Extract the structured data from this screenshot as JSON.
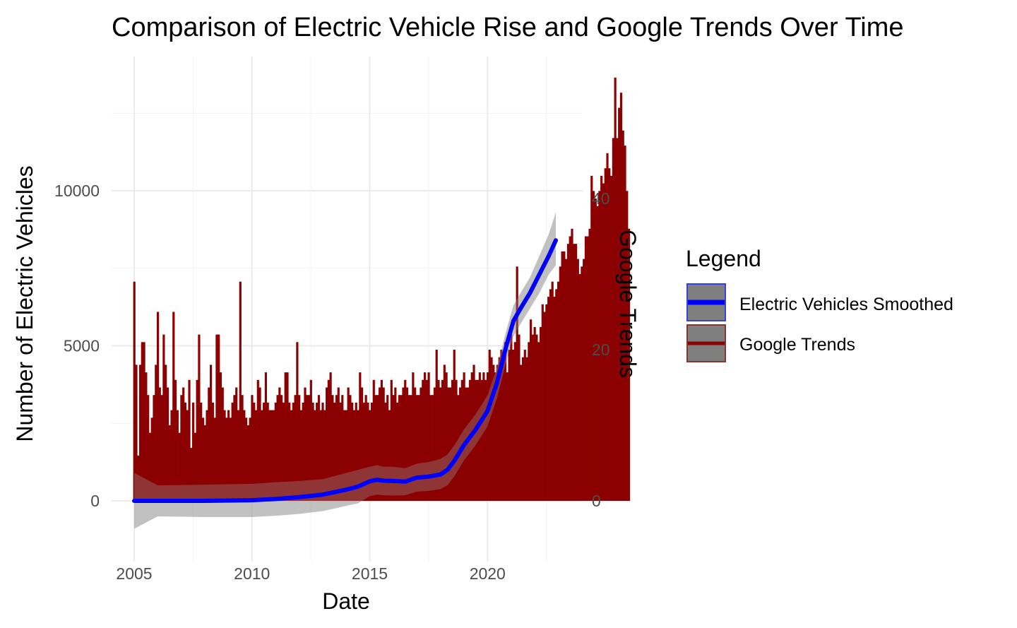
{
  "chart_data": {
    "type": "bar",
    "title": "Comparison of Electric Vehicle Rise and Google Trends Over Time",
    "xlabel": "Date",
    "ylabel": "Number of Electric Vehicles",
    "ylabel_right": "Google Trends",
    "xlim": [
      2005.0,
      2023.2
    ],
    "ylim_left": [
      -1800,
      14000
    ],
    "ylim_right": [
      -8.2,
      63.7
    ],
    "x_ticks": [
      2005,
      2010,
      2015,
      2020
    ],
    "x_tick_labels": [
      "2005",
      "2010",
      "2015",
      "2020"
    ],
    "y_ticks_left": [
      0,
      5000,
      10000
    ],
    "y_tick_labels_left": [
      "0",
      "5000",
      "10000"
    ],
    "y_ticks_right": [
      0,
      20,
      40
    ],
    "y_tick_labels_right": [
      "0",
      "20",
      "40"
    ],
    "grid": true,
    "legend": {
      "title": "Legend",
      "position": "right",
      "entries": [
        {
          "label": "Electric Vehicles Smoothed",
          "color": "#0000ff"
        },
        {
          "label": "Google Trends",
          "color": "#8b0000"
        }
      ]
    },
    "series": [
      {
        "name": "Electric Vehicles Smoothed",
        "type": "line",
        "axis": "left",
        "color": "#0000ff",
        "x": [
          2005.0,
          2006.0,
          2008.0,
          2010.0,
          2011.0,
          2012.0,
          2013.0,
          2013.5,
          2014.0,
          2014.5,
          2015.0,
          2015.3,
          2015.6,
          2016.0,
          2016.5,
          2017.0,
          2017.5,
          2018.0,
          2018.3,
          2018.6,
          2019.0,
          2019.5,
          2020.0,
          2020.4,
          2020.8,
          2021.1,
          2021.4,
          2021.8,
          2022.2,
          2022.6,
          2022.9
        ],
        "values": [
          0,
          0,
          0,
          20,
          60,
          120,
          200,
          280,
          360,
          460,
          630,
          680,
          650,
          640,
          620,
          750,
          780,
          850,
          1000,
          1300,
          1800,
          2300,
          2900,
          3800,
          5000,
          5800,
          6200,
          6700,
          7300,
          7900,
          8400
        ],
        "band_upper": [
          900,
          500,
          520,
          550,
          600,
          640,
          700,
          800,
          900,
          1000,
          1100,
          1150,
          1100,
          1100,
          1050,
          1200,
          1250,
          1350,
          1500,
          1800,
          2300,
          2800,
          3400,
          4300,
          5500,
          6300,
          6700,
          7200,
          7900,
          8600,
          9300
        ],
        "band_lower": [
          -900,
          -500,
          -520,
          -520,
          -480,
          -420,
          -330,
          -250,
          -160,
          -80,
          150,
          200,
          180,
          170,
          180,
          300,
          320,
          380,
          500,
          800,
          1300,
          1800,
          2400,
          3300,
          4500,
          5300,
          5700,
          6200,
          6700,
          7300,
          7600
        ]
      },
      {
        "name": "Google Trends",
        "type": "bar",
        "axis": "right",
        "color": "#8b0000",
        "x_start": 2005.0,
        "x_step": 0.083333,
        "values": [
          29,
          18,
          6,
          18,
          21,
          21,
          17,
          14,
          9,
          11,
          14,
          18,
          25,
          15,
          14,
          22,
          18,
          15,
          10,
          12,
          25,
          16,
          12,
          9,
          14,
          15,
          13,
          12,
          16,
          7,
          13,
          9,
          16,
          22,
          13,
          11,
          10,
          12,
          15,
          18,
          13,
          11,
          22,
          22,
          17,
          15,
          12,
          11,
          12,
          11,
          13,
          14,
          15,
          12,
          29,
          14,
          12,
          11,
          10,
          11,
          14,
          13,
          12,
          16,
          15,
          12,
          13,
          17,
          13,
          12,
          12,
          12,
          13,
          14,
          15,
          14,
          13,
          17,
          17,
          13,
          12,
          13,
          14,
          21,
          14,
          12,
          13,
          15,
          14,
          14,
          16,
          13,
          12,
          13,
          14,
          12,
          13,
          12,
          15,
          16,
          17,
          14,
          13,
          14,
          15,
          13,
          14,
          12,
          12,
          15,
          14,
          13,
          12,
          13,
          12,
          17,
          15,
          13,
          14,
          13,
          12,
          13,
          16,
          14,
          14,
          15,
          16,
          15,
          13,
          14,
          12,
          16,
          14,
          15,
          13,
          14,
          14,
          15,
          16,
          15,
          14,
          14,
          17,
          15,
          14,
          14,
          15,
          16,
          17,
          16,
          17,
          14,
          14,
          15,
          20,
          16,
          15,
          16,
          18,
          17,
          15,
          15,
          16,
          20,
          16,
          14,
          15,
          16,
          17,
          15,
          15,
          16,
          17,
          18,
          16,
          16,
          17,
          16,
          17,
          16,
          17,
          20,
          19,
          18,
          17,
          18,
          19,
          20,
          19,
          21,
          17,
          20,
          22,
          20,
          21,
          31,
          22,
          18,
          19,
          20,
          19,
          21,
          24,
          22,
          23,
          22,
          21,
          23,
          26,
          25,
          26,
          27,
          28,
          29,
          27,
          28,
          29,
          31,
          33,
          33,
          32,
          34,
          35,
          36,
          34,
          34,
          32,
          30,
          31,
          32,
          35,
          35,
          36,
          43,
          41,
          40,
          39,
          41,
          43,
          42,
          44,
          46,
          44,
          43,
          48,
          56,
          48,
          52,
          54,
          49,
          47,
          41,
          36
        ]
      }
    ]
  }
}
